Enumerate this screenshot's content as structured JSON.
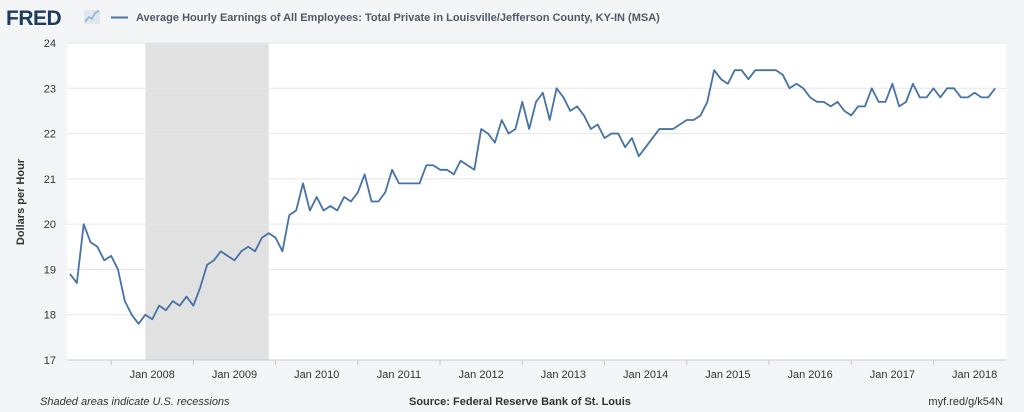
{
  "header": {
    "logo_text": "FRED",
    "legend_label": "Average Hourly Earnings of All Employees: Total Private in Louisville/Jefferson County, KY-IN (MSA)"
  },
  "footer": {
    "recession_note": "Shaded areas indicate U.S. recessions",
    "source": "Source: Federal Reserve Bank of St. Louis",
    "short_url": "myf.red/g/k54N"
  },
  "colors": {
    "series": "#4572a7",
    "recession": "#e1e1e1",
    "grid": "#e5e5e5",
    "background": "#f3f5f7",
    "plot": "#ffffff",
    "logo": "#1d3b5e"
  },
  "chart_data": {
    "type": "line",
    "title": "",
    "xlabel": "",
    "ylabel": "Dollars per Hour",
    "ylim": [
      17,
      24
    ],
    "yticks": [
      "17",
      "18",
      "19",
      "20",
      "21",
      "22",
      "23",
      "24"
    ],
    "xticks": [
      "Jan 2008",
      "Jan 2009",
      "Jan 2010",
      "Jan 2011",
      "Jan 2012",
      "Jan 2013",
      "Jan 2014",
      "Jan 2015",
      "Jan 2016",
      "Jan 2017",
      "Jan 2018"
    ],
    "xlim": [
      "2007-01",
      "2018-05"
    ],
    "grid": true,
    "legend_position": "top-left",
    "recessions": [
      {
        "start": "2007-12",
        "end": "2009-06"
      }
    ],
    "series": [
      {
        "name": "Average Hourly Earnings of All Employees: Total Private in Louisville/Jefferson County, KY-IN (MSA)",
        "start": "2007-01",
        "frequency": "monthly",
        "values": [
          18.9,
          18.7,
          20.0,
          19.6,
          19.5,
          19.2,
          19.3,
          19.0,
          18.3,
          18.0,
          17.8,
          18.0,
          17.9,
          18.2,
          18.1,
          18.3,
          18.2,
          18.4,
          18.2,
          18.6,
          19.1,
          19.2,
          19.4,
          19.3,
          19.2,
          19.4,
          19.5,
          19.4,
          19.7,
          19.8,
          19.7,
          19.4,
          20.2,
          20.3,
          20.9,
          20.3,
          20.6,
          20.3,
          20.4,
          20.3,
          20.6,
          20.5,
          20.7,
          21.1,
          20.5,
          20.5,
          20.7,
          21.2,
          20.9,
          20.9,
          20.9,
          20.9,
          21.3,
          21.3,
          21.2,
          21.2,
          21.1,
          21.4,
          21.3,
          21.2,
          22.1,
          22.0,
          21.8,
          22.3,
          22.0,
          22.1,
          22.7,
          22.1,
          22.7,
          22.9,
          22.3,
          23.0,
          22.8,
          22.5,
          22.6,
          22.4,
          22.1,
          22.2,
          21.9,
          22.0,
          22.0,
          21.7,
          21.9,
          21.5,
          21.7,
          21.9,
          22.1,
          22.1,
          22.1,
          22.2,
          22.3,
          22.3,
          22.4,
          22.7,
          23.4,
          23.2,
          23.1,
          23.4,
          23.4,
          23.2,
          23.4,
          23.4,
          23.4,
          23.4,
          23.3,
          23.0,
          23.1,
          23.0,
          22.8,
          22.7,
          22.7,
          22.6,
          22.7,
          22.5,
          22.4,
          22.6,
          22.6,
          23.0,
          22.7,
          22.7,
          23.1,
          22.6,
          22.7,
          23.1,
          22.8,
          22.8,
          23.0,
          22.8,
          23.0,
          23.0,
          22.8,
          22.8,
          22.9,
          22.8,
          22.8,
          23.0
        ]
      }
    ]
  }
}
